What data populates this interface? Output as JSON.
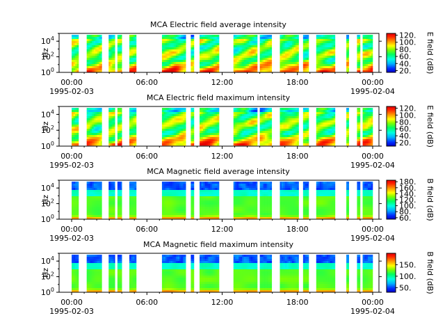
{
  "chart_data": [
    {
      "type": "heatmap",
      "title": "MCA  Electric field average intensity",
      "ylabel": "Hz",
      "yscale": "log",
      "ylim": [
        1,
        100000
      ],
      "y_ticks": [
        {
          "value": 1,
          "base": "10",
          "exp": "0"
        },
        {
          "value": 100,
          "base": "10",
          "exp": "2"
        },
        {
          "value": 10000,
          "base": "10",
          "exp": "4"
        }
      ],
      "x_ticks": [
        "00:00",
        "06:00",
        "12:00",
        "18:00",
        "00:00"
      ],
      "x_date_start": "1995-02-03",
      "x_date_end": "1995-02-04",
      "xlim_hours": [
        -1,
        24.5
      ],
      "colorbar": {
        "label": "E field (dB)",
        "ticks": [
          "20.",
          "40.",
          "60.",
          "80.",
          "100.",
          "120."
        ],
        "range": [
          15,
          125
        ]
      },
      "style": "electric",
      "data_intervals_hours": [
        [
          0,
          0.55
        ],
        [
          1.2,
          2.4
        ],
        [
          2.95,
          3.45
        ],
        [
          3.65,
          4.0
        ],
        [
          4.6,
          5.15
        ],
        [
          7.2,
          9.1
        ],
        [
          9.5,
          9.75
        ],
        [
          10.2,
          11.75
        ],
        [
          12.9,
          14.8
        ],
        [
          15.0,
          15.95
        ],
        [
          16.6,
          18.1
        ],
        [
          18.45,
          18.9
        ],
        [
          19.5,
          21.0
        ],
        [
          21.9,
          22.1
        ],
        [
          22.75,
          23.0
        ],
        [
          23.2,
          24.0
        ]
      ]
    },
    {
      "type": "heatmap",
      "title": "MCA  Electric field maximum intensity",
      "ylabel": "Hz",
      "yscale": "log",
      "ylim": [
        1,
        100000
      ],
      "y_ticks": [
        {
          "value": 1,
          "base": "10",
          "exp": "0"
        },
        {
          "value": 100,
          "base": "10",
          "exp": "2"
        },
        {
          "value": 10000,
          "base": "10",
          "exp": "4"
        }
      ],
      "x_ticks": [
        "00:00",
        "06:00",
        "12:00",
        "18:00",
        "00:00"
      ],
      "x_date_start": "1995-02-03",
      "x_date_end": "1995-02-04",
      "xlim_hours": [
        -1,
        24.5
      ],
      "colorbar": {
        "label": "E field (dB)",
        "ticks": [
          "20.",
          "40.",
          "60.",
          "80.",
          "100.",
          "120."
        ],
        "range": [
          10,
          125
        ]
      },
      "style": "electric",
      "data_intervals_hours": [
        [
          0,
          0.55
        ],
        [
          1.2,
          2.4
        ],
        [
          2.95,
          3.45
        ],
        [
          3.65,
          4.0
        ],
        [
          4.6,
          5.15
        ],
        [
          7.2,
          9.1
        ],
        [
          9.5,
          9.75
        ],
        [
          10.2,
          11.75
        ],
        [
          12.9,
          14.8
        ],
        [
          15.0,
          15.95
        ],
        [
          16.6,
          18.1
        ],
        [
          18.45,
          18.9
        ],
        [
          19.5,
          21.0
        ],
        [
          21.9,
          22.1
        ],
        [
          22.75,
          23.0
        ],
        [
          23.2,
          24.0
        ]
      ]
    },
    {
      "type": "heatmap",
      "title": "MCA  Magnetic field average intensity",
      "ylabel": "Hz",
      "yscale": "log",
      "ylim": [
        1,
        100000
      ],
      "y_ticks": [
        {
          "value": 1,
          "base": "10",
          "exp": "0"
        },
        {
          "value": 100,
          "base": "10",
          "exp": "2"
        },
        {
          "value": 10000,
          "base": "10",
          "exp": "4"
        }
      ],
      "x_ticks": [
        "00:00",
        "06:00",
        "12:00",
        "18:00",
        "00:00"
      ],
      "x_date_start": "1995-02-03",
      "x_date_end": "1995-02-04",
      "xlim_hours": [
        -1,
        24.5
      ],
      "colorbar": {
        "label": "B field (dB)",
        "ticks": [
          "60.",
          "80.",
          "100.",
          "120.",
          "140.",
          "160.",
          "180."
        ],
        "range": [
          55,
          185
        ]
      },
      "style": "magnetic",
      "data_intervals_hours": [
        [
          0,
          0.55
        ],
        [
          1.2,
          2.4
        ],
        [
          2.95,
          3.45
        ],
        [
          3.65,
          4.0
        ],
        [
          4.6,
          5.15
        ],
        [
          7.2,
          9.1
        ],
        [
          9.5,
          9.75
        ],
        [
          10.2,
          11.75
        ],
        [
          12.9,
          14.8
        ],
        [
          15.0,
          15.95
        ],
        [
          16.6,
          18.1
        ],
        [
          18.45,
          18.9
        ],
        [
          19.5,
          21.0
        ],
        [
          21.9,
          22.1
        ],
        [
          22.75,
          23.0
        ],
        [
          23.2,
          24.0
        ]
      ]
    },
    {
      "type": "heatmap",
      "title": "MCA  Magnetic field maximum intensity",
      "ylabel": "Hz",
      "yscale": "log",
      "ylim": [
        1,
        100000
      ],
      "y_ticks": [
        {
          "value": 1,
          "base": "10",
          "exp": "0"
        },
        {
          "value": 100,
          "base": "10",
          "exp": "2"
        },
        {
          "value": 10000,
          "base": "10",
          "exp": "4"
        }
      ],
      "x_ticks": [
        "00:00",
        "06:00",
        "12:00",
        "18:00",
        "00:00"
      ],
      "x_date_start": "1995-02-03",
      "x_date_end": "1995-02-04",
      "xlim_hours": [
        -1,
        24.5
      ],
      "colorbar": {
        "label": "B field (dB)",
        "ticks": [
          "50.",
          "100.",
          "150."
        ],
        "range": [
          30,
          200
        ]
      },
      "style": "magnetic",
      "data_intervals_hours": [
        [
          0,
          0.55
        ],
        [
          1.2,
          2.4
        ],
        [
          2.95,
          3.45
        ],
        [
          3.65,
          4.0
        ],
        [
          4.6,
          5.15
        ],
        [
          7.2,
          9.1
        ],
        [
          9.5,
          9.75
        ],
        [
          10.2,
          11.75
        ],
        [
          12.9,
          14.8
        ],
        [
          15.0,
          15.95
        ],
        [
          16.6,
          18.1
        ],
        [
          18.45,
          18.9
        ],
        [
          19.5,
          21.0
        ],
        [
          21.9,
          22.1
        ],
        [
          22.75,
          23.0
        ],
        [
          23.2,
          24.0
        ]
      ]
    }
  ]
}
